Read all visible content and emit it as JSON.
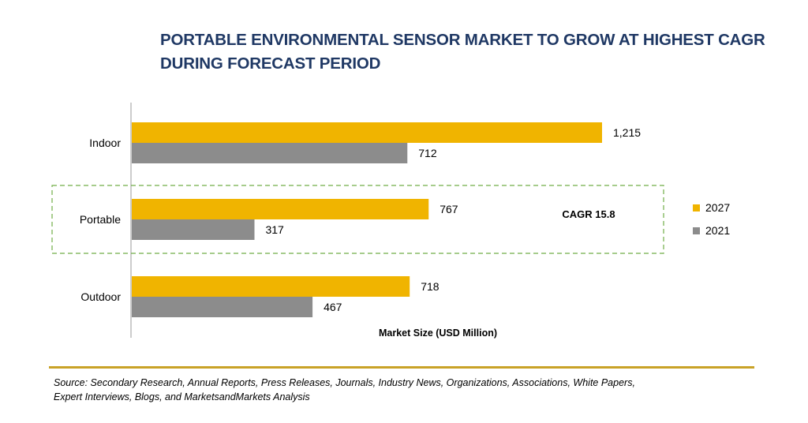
{
  "title_lines": [
    "PORTABLE ENVIRONMENTAL SENSOR MARKET TO GROW AT HIGHEST CAGR",
    "DURING FORECAST PERIOD"
  ],
  "source_lines": [
    "Source: Secondary Research, Annual Reports, Press Releases, Journals, Industry News, Organizations, Associations, White Papers,",
    "Expert Interviews, Blogs, and MarketsandMarkets Analysis"
  ],
  "chart_data": {
    "type": "bar",
    "orientation": "horizontal",
    "title": "PORTABLE ENVIRONMENTAL SENSOR MARKET TO GROW AT HIGHEST CAGR DURING FORECAST PERIOD",
    "categories": [
      "Indoor",
      "Portable",
      "Outdoor"
    ],
    "series": [
      {
        "name": "2027",
        "values": [
          1215,
          767,
          718
        ],
        "value_labels": [
          "1,215",
          "767",
          "718"
        ],
        "color": "#f0b400"
      },
      {
        "name": "2021",
        "values": [
          712,
          317,
          467
        ],
        "value_labels": [
          "712",
          "317",
          "467"
        ],
        "color": "#8c8c8c"
      }
    ],
    "xlabel": "Market Size (USD Million)",
    "ylabel": "",
    "xlim": [
      0,
      1215
    ],
    "grid": false,
    "legend": "right",
    "highlight": {
      "category": "Portable",
      "annotation": "CAGR 15.8",
      "border_color": "#70ad47",
      "style": "dashed"
    }
  }
}
